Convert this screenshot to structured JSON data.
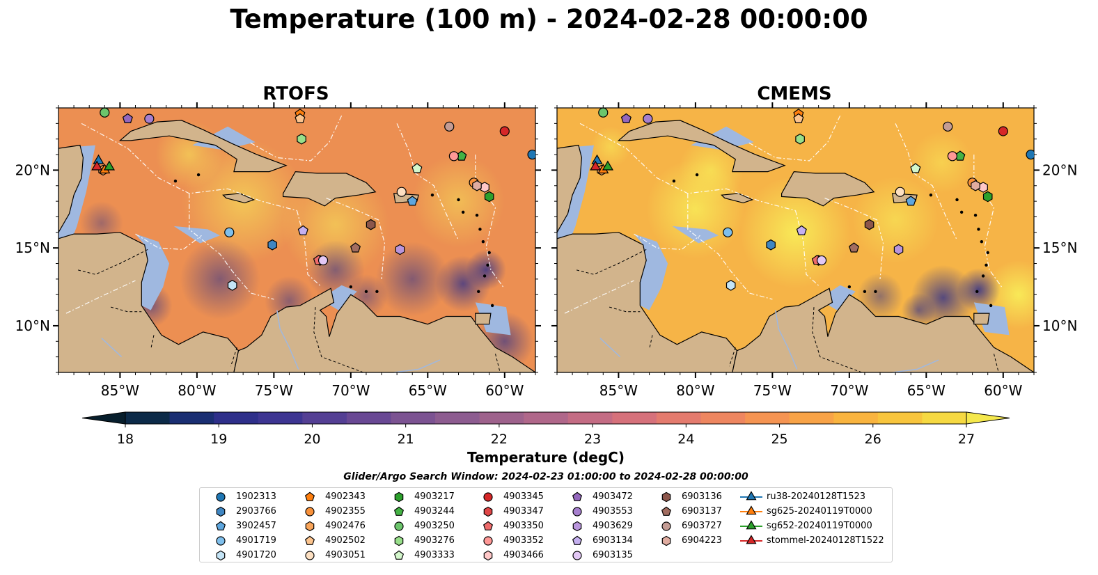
{
  "title": "Temperature (100 m) - 2024-02-28 00:00:00",
  "panels": [
    "RTOFS",
    "CMEMS"
  ],
  "colors": {
    "land": "#d2b48c",
    "shallow": "#9fb8e0",
    "deep": "#0a2236",
    "low_c": "#2e2f8a",
    "high_c": "#f8f25a"
  },
  "chart_data": {
    "type": "heatmap",
    "variable": "Temperature (degC)",
    "depth": "100 m",
    "time": "2024-02-28 00:00:00",
    "xlim": [
      -89,
      -58
    ],
    "ylim": [
      7,
      24
    ],
    "x_ticks": [
      "85°W",
      "80°W",
      "75°W",
      "70°W",
      "65°W",
      "60°W"
    ],
    "x_tick_values": [
      -85,
      -80,
      -75,
      -70,
      -65,
      -60
    ],
    "y_ticks": [
      "10°N",
      "15°N",
      "20°N"
    ],
    "y_tick_values": [
      10,
      15,
      20
    ],
    "colorbar": {
      "label": "Temperature (degC)",
      "ticks": [
        "18",
        "19",
        "20",
        "21",
        "22",
        "23",
        "24",
        "25",
        "26",
        "27"
      ],
      "tick_values": [
        18,
        19,
        20,
        21,
        22,
        23,
        24,
        25,
        26,
        27
      ],
      "colors": [
        "#071e2c",
        "#0c2a48",
        "#1a2e72",
        "#2e2f8a",
        "#3d3592",
        "#543f94",
        "#694894",
        "#7c5392",
        "#8d5c90",
        "#9e628c",
        "#b0678a",
        "#c46c84",
        "#d6717b",
        "#e47b6e",
        "#ee8660",
        "#f59452",
        "#f8a347",
        "#f9b43f",
        "#f8c53d",
        "#f6d942",
        "#f5e84c"
      ]
    },
    "search_window": "Glider/Argo Search Window: 2024-02-23 01:00:00 to 2024-02-28 00:00:00",
    "markers": [
      {
        "id": "1902313",
        "lon": -58.2,
        "lat": 21.0,
        "color": "#1f77b4",
        "shape": "circle"
      },
      {
        "id": "2903766",
        "lon": -75.1,
        "lat": 15.2,
        "color": "#3f86c2",
        "shape": "hexagon"
      },
      {
        "id": "3902457",
        "lon": -66.0,
        "lat": 18.0,
        "color": "#5ea6de",
        "shape": "pentagon"
      },
      {
        "id": "4901719",
        "lon": -77.9,
        "lat": 16.0,
        "color": "#7fbfec",
        "shape": "circle"
      },
      {
        "id": "4901720",
        "lon": -77.7,
        "lat": 12.6,
        "color": "#c4e4f6",
        "shape": "hexagon"
      },
      {
        "id": "4902343",
        "lon": -73.3,
        "lat": 23.6,
        "color": "#ff7f0e",
        "shape": "pentagon"
      },
      {
        "id": "4902355",
        "lon": -62.0,
        "lat": 19.2,
        "color": "#f8913a",
        "shape": "circle"
      },
      {
        "id": "4902476",
        "lon": -86.1,
        "lat": 20.0,
        "color": "#f9a55a",
        "shape": "hexagon"
      },
      {
        "id": "4902502",
        "lon": -73.3,
        "lat": 23.3,
        "color": "#fcc48e",
        "shape": "pentagon"
      },
      {
        "id": "4903051",
        "lon": -66.7,
        "lat": 18.6,
        "color": "#fde0c2",
        "shape": "circle"
      },
      {
        "id": "4903217",
        "lon": -61.0,
        "lat": 18.3,
        "color": "#2ca02c",
        "shape": "hexagon"
      },
      {
        "id": "4903244",
        "lon": -62.8,
        "lat": 20.9,
        "color": "#44b244",
        "shape": "pentagon"
      },
      {
        "id": "4903250",
        "lon": -86.0,
        "lat": 23.7,
        "color": "#6cc56c",
        "shape": "circle"
      },
      {
        "id": "4903276",
        "lon": -73.2,
        "lat": 22.0,
        "color": "#98df8a",
        "shape": "hexagon"
      },
      {
        "id": "4903333",
        "lon": -65.7,
        "lat": 20.1,
        "color": "#d4f7cc",
        "shape": "pentagon"
      },
      {
        "id": "4903345",
        "lon": -60.0,
        "lat": 22.5,
        "color": "#d62728",
        "shape": "circle"
      },
      {
        "id": "4903347",
        "lon": -72.0,
        "lat": 14.2,
        "color": "#e04647",
        "shape": "hexagon"
      },
      {
        "id": "4903350",
        "lon": -72.1,
        "lat": 14.2,
        "color": "#ee6b6b",
        "shape": "pentagon"
      },
      {
        "id": "4903352",
        "lon": -63.3,
        "lat": 20.9,
        "color": "#ff9896",
        "shape": "circle"
      },
      {
        "id": "4903466",
        "lon": -61.3,
        "lat": 18.9,
        "color": "#ffc8c8",
        "shape": "hexagon"
      },
      {
        "id": "4903472",
        "lon": -84.5,
        "lat": 23.3,
        "color": "#9467bd",
        "shape": "pentagon"
      },
      {
        "id": "4903553",
        "lon": -83.1,
        "lat": 23.3,
        "color": "#a67fce",
        "shape": "circle"
      },
      {
        "id": "4903629",
        "lon": -66.8,
        "lat": 14.9,
        "color": "#b995dc",
        "shape": "hexagon"
      },
      {
        "id": "6903134",
        "lon": -73.1,
        "lat": 16.1,
        "color": "#c5b0f0",
        "shape": "pentagon"
      },
      {
        "id": "6903135",
        "lon": -71.8,
        "lat": 14.2,
        "color": "#e3c8f5",
        "shape": "circle"
      },
      {
        "id": "6903136",
        "lon": -68.7,
        "lat": 16.5,
        "color": "#8c564b",
        "shape": "hexagon"
      },
      {
        "id": "6903137",
        "lon": -69.7,
        "lat": 15.0,
        "color": "#a26d60",
        "shape": "pentagon"
      },
      {
        "id": "6903727",
        "lon": -63.6,
        "lat": 22.8,
        "color": "#c49c94",
        "shape": "circle"
      },
      {
        "id": "6904223",
        "lon": -61.8,
        "lat": 19.0,
        "color": "#e0aca0",
        "shape": "hexagon"
      },
      {
        "id": "ru38-20240128T1523",
        "lon": -86.4,
        "lat": 20.6,
        "color": "#1f77b4",
        "shape": "triangle"
      },
      {
        "id": "sg625-20240119T0000",
        "lon": -86.0,
        "lat": 20.0,
        "color": "#ff7f0e",
        "shape": "triangle"
      },
      {
        "id": "sg652-20240119T0000",
        "lon": -85.7,
        "lat": 20.2,
        "color": "#2ca02c",
        "shape": "triangle"
      },
      {
        "id": "stommel-20240128T1522",
        "lon": -86.5,
        "lat": 20.2,
        "color": "#d62728",
        "shape": "triangle"
      }
    ]
  },
  "legend_entries": [
    "1902313",
    "2903766",
    "3902457",
    "4901719",
    "4901720",
    "4902343",
    "4902355",
    "4902476",
    "4902502",
    "4903051",
    "4903217",
    "4903244",
    "4903250",
    "4903276",
    "4903333",
    "4903345",
    "4903347",
    "4903350",
    "4903352",
    "4903466",
    "4903472",
    "4903553",
    "4903629",
    "6903134",
    "6903135",
    "6903136",
    "6903137",
    "6903727",
    "6904223",
    "ru38-20240128T1523",
    "sg625-20240119T0000",
    "sg652-20240119T0000",
    "stommel-20240128T1522"
  ]
}
